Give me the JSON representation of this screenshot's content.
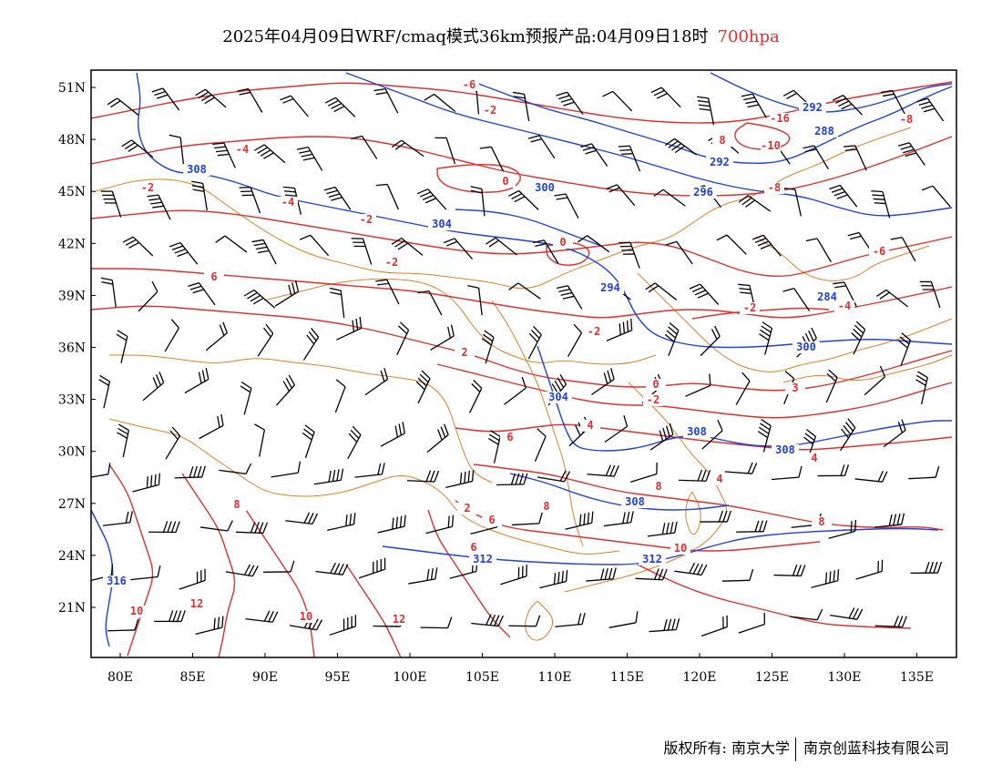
{
  "title": {
    "text": "2025年04月09日WRF/cmaq模式36km预报产品:04月09日18时",
    "level": "700hpa"
  },
  "axes": {
    "lon_labels": [
      "80E",
      "85E",
      "90E",
      "95E",
      "100E",
      "105E",
      "110E",
      "115E",
      "120E",
      "125E",
      "130E",
      "135E"
    ],
    "lat_labels": [
      "51N",
      "48N",
      "45N",
      "42N",
      "39N",
      "36N",
      "33N",
      "30N",
      "27N",
      "24N",
      "21N"
    ]
  },
  "contour_labels": {
    "height": [
      "308",
      "300",
      "304",
      "296",
      "292",
      "292",
      "288",
      "284",
      "294",
      "300",
      "304",
      "308",
      "308",
      "308",
      "312",
      "312",
      "316"
    ],
    "temperature": [
      "-4",
      "-6",
      "-2",
      "-2",
      "-4",
      "0",
      "-2",
      "-2",
      "0",
      "-2",
      "-6",
      "-4",
      "-8",
      "-16",
      "-10",
      "-8",
      "8",
      "-2",
      "0",
      "2",
      "-2",
      "2",
      "4",
      "3",
      "6",
      "4",
      "4",
      "8",
      "8",
      "6",
      "6",
      "10",
      "12",
      "12",
      "10",
      "10",
      "8",
      "8",
      "6"
    ]
  },
  "colors": {
    "height_contour": "#2040e0",
    "temperature_contour": "#e03030",
    "boundary": "#d9822b",
    "wind_barb": "#000000"
  },
  "footer": {
    "left": "版权所有: 南京大学",
    "right": "南京创蓝科技有限公司"
  }
}
